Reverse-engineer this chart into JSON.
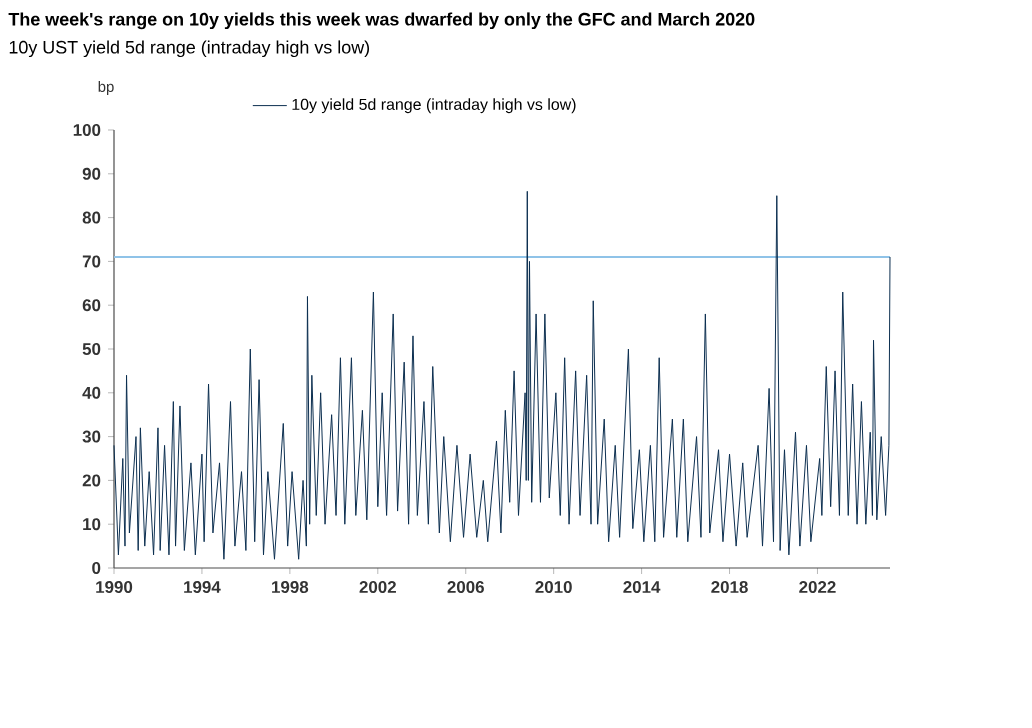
{
  "chart_data": {
    "type": "line",
    "title": "The week's range on 10y yields this week was dwarfed by only the GFC and March 2020",
    "subtitle": "10y UST yield 5d range (intraday high vs low)",
    "ylabel": "bp",
    "xlim": [
      1990,
      2025.3
    ],
    "xticks": [
      1990,
      1994,
      1998,
      2002,
      2006,
      2010,
      2014,
      2018,
      2022
    ],
    "ylim": [
      0,
      100
    ],
    "yticks": [
      0,
      10,
      20,
      30,
      40,
      50,
      60,
      70,
      80,
      90,
      100
    ],
    "grid": false,
    "legend": "top",
    "marker": "none",
    "line_style": "solid",
    "ref_lines": [
      {
        "axis": "y",
        "value": 71,
        "color": "#8fc3e8"
      }
    ],
    "series": [
      {
        "name": "10y yield 5d range (intraday high vs low)",
        "color": "#0b2e4f",
        "x": [
          1990.0,
          1990.2,
          1990.4,
          1990.5,
          1990.57,
          1990.7,
          1991.0,
          1991.1,
          1991.2,
          1991.4,
          1991.6,
          1991.8,
          1992.0,
          1992.1,
          1992.3,
          1992.5,
          1992.7,
          1992.8,
          1993.0,
          1993.2,
          1993.5,
          1993.7,
          1994.0,
          1994.1,
          1994.3,
          1994.5,
          1994.8,
          1995.0,
          1995.3,
          1995.5,
          1995.8,
          1996.0,
          1996.2,
          1996.4,
          1996.6,
          1996.8,
          1997.0,
          1997.3,
          1997.7,
          1997.9,
          1998.1,
          1998.4,
          1998.6,
          1998.75,
          1998.8,
          1998.9,
          1999.0,
          1999.2,
          1999.4,
          1999.6,
          1999.9,
          2000.1,
          2000.3,
          2000.5,
          2000.8,
          2001.0,
          2001.3,
          2001.5,
          2001.8,
          2002.0,
          2002.2,
          2002.4,
          2002.7,
          2002.9,
          2003.2,
          2003.4,
          2003.6,
          2003.8,
          2004.1,
          2004.3,
          2004.5,
          2004.8,
          2005.0,
          2005.3,
          2005.6,
          2005.9,
          2006.2,
          2006.5,
          2006.8,
          2007.0,
          2007.4,
          2007.6,
          2007.8,
          2008.0,
          2008.2,
          2008.4,
          2008.7,
          2008.75,
          2008.8,
          2008.85,
          2008.9,
          2009.0,
          2009.2,
          2009.4,
          2009.6,
          2009.8,
          2010.1,
          2010.3,
          2010.5,
          2010.7,
          2011.0,
          2011.2,
          2011.5,
          2011.7,
          2011.8,
          2012.0,
          2012.3,
          2012.5,
          2012.8,
          2013.0,
          2013.4,
          2013.6,
          2013.9,
          2014.1,
          2014.4,
          2014.6,
          2014.8,
          2015.0,
          2015.4,
          2015.6,
          2015.9,
          2016.1,
          2016.5,
          2016.7,
          2016.9,
          2017.1,
          2017.5,
          2017.7,
          2018.0,
          2018.3,
          2018.6,
          2018.8,
          2019.3,
          2019.5,
          2019.8,
          2020.0,
          2020.15,
          2020.3,
          2020.5,
          2020.7,
          2021.0,
          2021.2,
          2021.5,
          2021.7,
          2022.1,
          2022.2,
          2022.4,
          2022.6,
          2022.8,
          2023.0,
          2023.15,
          2023.4,
          2023.6,
          2023.8,
          2024.0,
          2024.2,
          2024.4,
          2024.5,
          2024.55,
          2024.7,
          2024.9,
          2025.1,
          2025.25,
          2025.3
        ],
        "values": [
          28,
          3,
          25,
          5,
          44,
          8,
          30,
          4,
          32,
          5,
          22,
          3,
          32,
          4,
          28,
          3,
          38,
          5,
          37,
          4,
          24,
          3,
          26,
          6,
          42,
          8,
          24,
          2,
          38,
          5,
          22,
          4,
          50,
          6,
          43,
          3,
          22,
          2,
          33,
          5,
          22,
          2,
          20,
          5,
          62,
          10,
          44,
          12,
          40,
          10,
          35,
          12,
          48,
          10,
          48,
          12,
          36,
          11,
          63,
          14,
          40,
          12,
          58,
          13,
          47,
          10,
          53,
          12,
          38,
          10,
          46,
          8,
          30,
          6,
          28,
          7,
          26,
          7,
          20,
          6,
          29,
          8,
          36,
          15,
          45,
          12,
          40,
          20,
          86,
          20,
          70,
          15,
          58,
          15,
          58,
          16,
          40,
          12,
          48,
          10,
          45,
          12,
          44,
          10,
          61,
          10,
          34,
          6,
          28,
          7,
          50,
          9,
          27,
          6,
          28,
          6,
          48,
          7,
          34,
          7,
          34,
          6,
          30,
          7,
          58,
          8,
          27,
          6,
          26,
          5,
          24,
          7,
          28,
          5,
          41,
          6,
          85,
          4,
          27,
          3,
          31,
          5,
          28,
          6,
          25,
          12,
          46,
          14,
          45,
          12,
          63,
          12,
          42,
          10,
          38,
          10,
          31,
          12,
          52,
          11,
          30,
          12,
          28,
          71
        ]
      }
    ]
  }
}
